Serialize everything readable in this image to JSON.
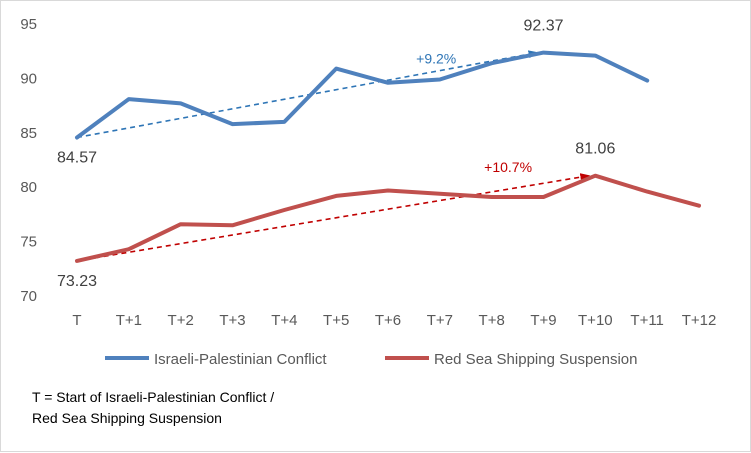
{
  "chart_data": {
    "type": "line",
    "title": "",
    "xlabel": "",
    "ylabel": "",
    "categories": [
      "T",
      "T+1",
      "T+2",
      "T+3",
      "T+4",
      "T+5",
      "T+6",
      "T+7",
      "T+8",
      "T+9",
      "T+10",
      "T+11",
      "T+12"
    ],
    "ylim": [
      70,
      95
    ],
    "yticks": [
      70,
      75,
      80,
      85,
      90,
      95
    ],
    "grid": false,
    "legend_position": "bottom",
    "series": [
      {
        "name": "Israeli-Palestinian Conflict",
        "color": "#4f81bd",
        "values": [
          84.57,
          88.1,
          87.7,
          85.8,
          86.0,
          90.9,
          89.6,
          89.9,
          91.4,
          92.37,
          92.1,
          89.8,
          null
        ]
      },
      {
        "name": "Red Sea Shipping Suspension",
        "color": "#c0504d",
        "values": [
          73.23,
          74.3,
          76.6,
          76.5,
          77.9,
          79.2,
          79.7,
          79.4,
          79.1,
          79.1,
          81.06,
          79.6,
          78.3
        ]
      }
    ],
    "annotations": [
      {
        "type": "trend-arrow",
        "series": 0,
        "from_index": 0,
        "to_index": 9,
        "label": "+9.2%",
        "color": "#2e75b6"
      },
      {
        "type": "trend-arrow",
        "series": 1,
        "from_index": 0,
        "to_index": 10,
        "label": "+10.7%",
        "color": "#c00000"
      }
    ],
    "data_labels": [
      {
        "series": 0,
        "index": 0,
        "text": "84.57"
      },
      {
        "series": 0,
        "index": 9,
        "text": "92.37"
      },
      {
        "series": 1,
        "index": 0,
        "text": "73.23"
      },
      {
        "series": 1,
        "index": 10,
        "text": "81.06"
      }
    ]
  },
  "footnote": {
    "line1": "T = Start of Israeli-Palestinian Conflict /",
    "line2": "Red Sea Shipping Suspension"
  }
}
